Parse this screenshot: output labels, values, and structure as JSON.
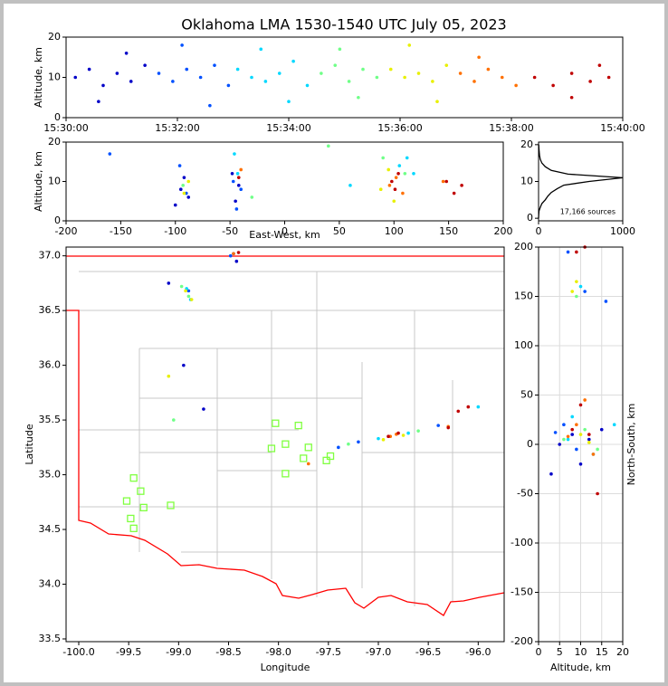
{
  "chart_data": [
    {
      "type": "scatter",
      "title": "Oklahoma LMA 1530-1540 UTC July 05, 2023",
      "ylabel": "Altitude, km",
      "xlim": [
        "15:30:00",
        "15:40:00"
      ],
      "xticks": [
        "15:30:00",
        "15:32:00",
        "15:34:00",
        "15:36:00",
        "15:38:00",
        "15:40:00"
      ],
      "ylim": [
        0,
        20
      ],
      "yticks": [
        0,
        10,
        20
      ],
      "series": [
        {
          "color": "#0000c8",
          "x": [
            "15:30:10",
            "15:30:25",
            "15:30:40",
            "15:30:55",
            "15:31:10",
            "15:31:25",
            "15:30:35",
            "15:31:05"
          ],
          "values": [
            10,
            12,
            8,
            11,
            9,
            13,
            4,
            16
          ]
        },
        {
          "color": "#0050ff",
          "x": [
            "15:31:40",
            "15:31:55",
            "15:32:10",
            "15:32:25",
            "15:32:40",
            "15:32:55",
            "15:32:05",
            "15:32:35"
          ],
          "values": [
            11,
            9,
            12,
            10,
            13,
            8,
            18,
            3
          ]
        },
        {
          "color": "#00d8ff",
          "x": [
            "15:33:05",
            "15:33:20",
            "15:33:35",
            "15:33:50",
            "15:34:05",
            "15:34:20",
            "15:33:30",
            "15:34:00"
          ],
          "values": [
            12,
            10,
            9,
            11,
            14,
            8,
            17,
            4
          ]
        },
        {
          "color": "#70ff88",
          "x": [
            "15:34:35",
            "15:34:50",
            "15:35:05",
            "15:35:20",
            "15:35:35",
            "15:34:55",
            "15:35:15"
          ],
          "values": [
            11,
            13,
            9,
            12,
            10,
            17,
            5
          ]
        },
        {
          "color": "#e8f000",
          "x": [
            "15:35:50",
            "15:36:05",
            "15:36:20",
            "15:36:35",
            "15:36:50",
            "15:36:10",
            "15:36:40"
          ],
          "values": [
            12,
            10,
            11,
            9,
            13,
            18,
            4
          ]
        },
        {
          "color": "#ff7000",
          "x": [
            "15:37:05",
            "15:37:20",
            "15:37:35",
            "15:37:50",
            "15:38:05",
            "15:37:25"
          ],
          "values": [
            11,
            9,
            12,
            10,
            8,
            15
          ]
        },
        {
          "color": "#c00000",
          "x": [
            "15:38:25",
            "15:38:45",
            "15:39:05",
            "15:39:25",
            "15:39:45",
            "15:39:05",
            "15:39:35"
          ],
          "values": [
            10,
            8,
            11,
            9,
            10,
            5,
            13
          ]
        }
      ]
    },
    {
      "type": "scatter",
      "xlabel": "East-West, km",
      "ylabel": "Altitude, km",
      "xlim": [
        -200,
        200
      ],
      "xticks": [
        -200,
        -150,
        -100,
        -50,
        0,
        50,
        100,
        150,
        200
      ],
      "ylim": [
        0,
        20
      ],
      "yticks": [
        0,
        10,
        20
      ],
      "series": [
        {
          "color": "#0000c8",
          "x": [
            -95,
            -92,
            -88,
            -45,
            -42,
            -48,
            -100
          ],
          "values": [
            8,
            11,
            6,
            5,
            9,
            12,
            4
          ]
        },
        {
          "color": "#0050ff",
          "x": [
            -96,
            -90,
            -47,
            -44,
            -40,
            -160
          ],
          "values": [
            14,
            7,
            10,
            3,
            8,
            17
          ]
        },
        {
          "color": "#00d8ff",
          "x": [
            -46,
            -43,
            105,
            112,
            118,
            60
          ],
          "values": [
            17,
            12,
            14,
            16,
            12,
            9
          ]
        },
        {
          "color": "#70ff88",
          "x": [
            -93,
            90,
            110,
            -30,
            40
          ],
          "values": [
            9,
            16,
            12,
            6,
            19
          ]
        },
        {
          "color": "#e8f000",
          "x": [
            -92,
            -88,
            88,
            95,
            100
          ],
          "values": [
            7,
            10,
            8,
            13,
            5
          ]
        },
        {
          "color": "#ff7000",
          "x": [
            96,
            102,
            108,
            -40,
            145
          ],
          "values": [
            9,
            11,
            7,
            13,
            10
          ]
        },
        {
          "color": "#c00000",
          "x": [
            98,
            101,
            104,
            148,
            155,
            162,
            -42
          ],
          "values": [
            10,
            8,
            12,
            10,
            7,
            9,
            11
          ]
        }
      ]
    },
    {
      "type": "line",
      "orientation": "horizontal",
      "annotation": "17,166 sources",
      "color": "#000000",
      "xlim": [
        0,
        1000
      ],
      "xticks": [
        0,
        1000
      ],
      "ylim": [
        -0.7,
        20.7
      ],
      "yticks": [
        0,
        10,
        20
      ],
      "x": [
        0,
        1,
        2,
        3,
        4,
        5,
        6,
        7,
        8,
        9,
        10,
        11,
        12,
        13,
        14,
        15,
        16,
        17,
        18,
        19,
        20
      ],
      "values": [
        0,
        2,
        5,
        20,
        40,
        80,
        110,
        150,
        220,
        300,
        600,
        1000,
        350,
        150,
        80,
        40,
        20,
        12,
        8,
        4,
        2
      ]
    },
    {
      "type": "scatter",
      "xlabel": "Longitude",
      "ylabel": "Latitude",
      "xlim": [
        -100.127,
        -95.74
      ],
      "xticks": [
        {
          "value": -100,
          "label": "-100.0"
        },
        -99.5,
        {
          "value": -99,
          "label": "-99.0"
        },
        -98.5,
        {
          "value": -98,
          "label": "-98.0"
        },
        -97.5,
        {
          "value": -97,
          "label": "-97.0"
        },
        -96.5,
        {
          "value": -96,
          "label": "-96.0"
        }
      ],
      "ylim": [
        33.475,
        37.08
      ],
      "yticks": [
        33.5,
        {
          "value": 34,
          "label": "34.0"
        },
        34.5,
        {
          "value": 35,
          "label": "35.0"
        },
        35.5,
        {
          "value": 36,
          "label": "36.0"
        },
        36.5,
        {
          "value": 37,
          "label": "37.0"
        }
      ],
      "series": [
        {
          "color": "#0000c8",
          "x": [
            -98.45,
            -98.42,
            -99.1,
            -98.95,
            -98.75
          ],
          "values": [
            37.02,
            36.95,
            36.75,
            36.0,
            35.6
          ]
        },
        {
          "color": "#0050ff",
          "x": [
            -98.48,
            -98.9,
            -97.4,
            -97.2,
            -96.4
          ],
          "values": [
            37.0,
            36.68,
            35.25,
            35.3,
            35.45
          ]
        },
        {
          "color": "#00d8ff",
          "x": [
            -98.92,
            -98.88,
            -97.0,
            -96.7,
            -96.0
          ],
          "values": [
            36.7,
            36.6,
            35.33,
            35.38,
            35.62
          ]
        },
        {
          "color": "#70ff88",
          "x": [
            -98.97,
            -98.9,
            -97.3,
            -96.6,
            -99.05
          ],
          "values": [
            36.72,
            36.63,
            35.28,
            35.4,
            35.5
          ]
        },
        {
          "color": "#e8f000",
          "x": [
            -98.93,
            -98.87,
            -96.95,
            -96.75,
            -99.1
          ],
          "values": [
            36.68,
            36.6,
            35.32,
            35.36,
            35.9
          ]
        },
        {
          "color": "#ff7000",
          "x": [
            -98.45,
            -96.88,
            -96.82,
            -96.3,
            -97.7
          ],
          "values": [
            37.02,
            35.35,
            35.37,
            35.44,
            35.1
          ]
        },
        {
          "color": "#c00000",
          "x": [
            -98.4,
            -96.9,
            -96.8,
            -96.3,
            -96.2,
            -96.1
          ],
          "values": [
            37.03,
            35.35,
            35.38,
            35.43,
            35.58,
            35.62
          ]
        },
        {
          "color": "#80ff40",
          "marker": "square",
          "x": [
            -99.45,
            -99.52,
            -99.38,
            -99.35,
            -99.48,
            -99.45,
            -99.08,
            -98.07,
            -98.03,
            -97.93,
            -97.93,
            -97.8,
            -97.75,
            -97.7,
            -97.52,
            -97.48
          ],
          "values": [
            34.97,
            34.76,
            34.85,
            34.7,
            34.6,
            34.51,
            34.72,
            35.24,
            35.47,
            35.28,
            35.01,
            35.45,
            35.15,
            35.25,
            35.13,
            35.17
          ]
        }
      ]
    },
    {
      "type": "scatter",
      "xlabel": "Altitude, km",
      "ylabel": "North-South, km",
      "ylabel_side": "right",
      "grid": true,
      "xlim": [
        0,
        20
      ],
      "xticks": [
        0,
        5,
        10,
        15,
        20
      ],
      "ylim": [
        -200,
        200
      ],
      "yticks": [
        -200,
        -150,
        -100,
        -50,
        0,
        50,
        100,
        150,
        200
      ],
      "series": [
        {
          "color": "#0000c8",
          "x": [
            5,
            8,
            10,
            12,
            3,
            15
          ],
          "values": [
            0,
            10,
            -20,
            5,
            -30,
            15
          ]
        },
        {
          "color": "#0050ff",
          "x": [
            6,
            9,
            11,
            4,
            16,
            7
          ],
          "values": [
            20,
            -5,
            155,
            12,
            145,
            195
          ]
        },
        {
          "color": "#00d8ff",
          "x": [
            7,
            10,
            13,
            8,
            18
          ],
          "values": [
            5,
            160,
            -10,
            28,
            20
          ]
        },
        {
          "color": "#70ff88",
          "x": [
            9,
            11,
            6,
            14
          ],
          "values": [
            150,
            15,
            5,
            -5
          ]
        },
        {
          "color": "#e8f000",
          "x": [
            8,
            10,
            12,
            9
          ],
          "values": [
            155,
            10,
            2,
            165
          ]
        },
        {
          "color": "#ff7000",
          "x": [
            9,
            11,
            7,
            13
          ],
          "values": [
            20,
            45,
            8,
            -10
          ]
        },
        {
          "color": "#c00000",
          "x": [
            8,
            10,
            12,
            9,
            11,
            14
          ],
          "values": [
            15,
            40,
            10,
            195,
            200,
            -50
          ]
        }
      ]
    }
  ]
}
